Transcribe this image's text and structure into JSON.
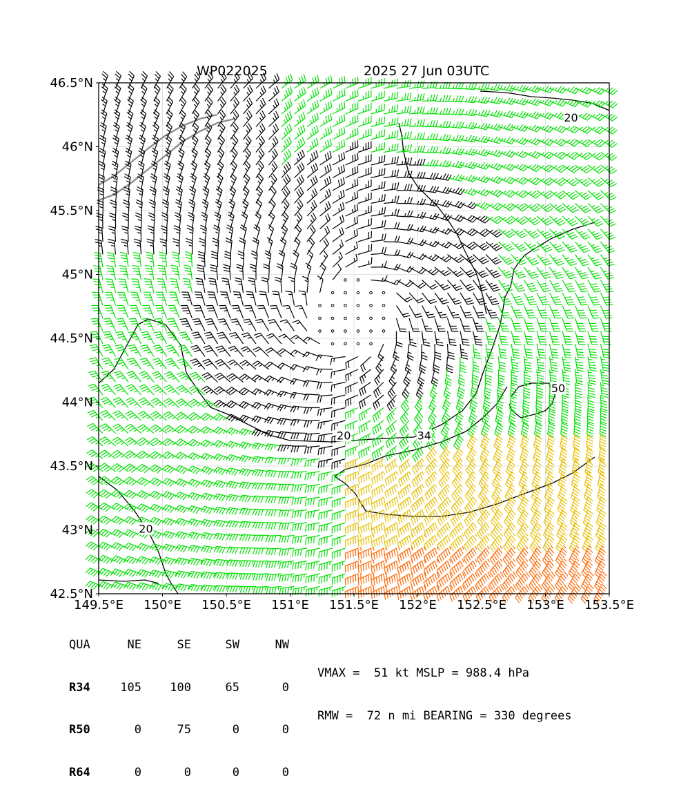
{
  "header": {
    "storm_id": "WP022025",
    "valid_time": "2025 27 Jun 03UTC"
  },
  "chart_data": {
    "type": "wind-barb map",
    "x_ticks": [
      149.5,
      150.0,
      150.5,
      151.0,
      151.5,
      152.0,
      152.5,
      153.0,
      153.5
    ],
    "x_tick_labels": [
      "149.5°E",
      "150°E",
      "150.5°E",
      "151°E",
      "151.5°E",
      "152°E",
      "152.5°E",
      "153°E",
      "153.5°E"
    ],
    "y_ticks": [
      42.5,
      43.0,
      43.5,
      44.0,
      44.5,
      45.0,
      45.5,
      46.0,
      46.5
    ],
    "y_tick_labels": [
      "42.5°N",
      "43°N",
      "43.5°N",
      "44°N",
      "44.5°N",
      "45°N",
      "45.5°N",
      "46°N",
      "46.5°N"
    ],
    "xlim": [
      149.5,
      153.5
    ],
    "ylim": [
      42.5,
      46.5
    ],
    "grid": true,
    "storm_center": [
      151.5,
      44.68
    ],
    "contour_levels": [
      20,
      34,
      50
    ],
    "contour_labels": [
      {
        "text": "20",
        "lon": 151.42,
        "lat": 43.73
      },
      {
        "text": "20",
        "lon": 153.2,
        "lat": 46.22
      },
      {
        "text": "20",
        "lon": 149.87,
        "lat": 43.0
      },
      {
        "text": "34",
        "lon": 152.05,
        "lat": 43.73
      },
      {
        "text": "50",
        "lon": 153.1,
        "lat": 44.1
      }
    ],
    "barb_colors": {
      "below_34_kt": "#000000",
      "34_to_50_kt": "#00e000",
      "50_to_64_kt": "#e6c000",
      "64_kt_plus": "#ff6600",
      "coastline": "#000000",
      "terrain_outline": "#8c8c8c"
    }
  },
  "wind_radii": {
    "columns": [
      "QUA",
      "NE",
      "SE",
      "SW",
      "NW"
    ],
    "rows": [
      [
        "R34",
        "105",
        "100",
        "65",
        "0"
      ],
      [
        "R50",
        "0",
        "75",
        "0",
        "0"
      ],
      [
        "R64",
        "0",
        "0",
        "0",
        "0"
      ]
    ]
  },
  "summary": {
    "line1": "VMAX =  51 kt MSLP = 988.4 hPa",
    "line2": "RMW =  72 n mi BEARING = 330 degrees"
  }
}
